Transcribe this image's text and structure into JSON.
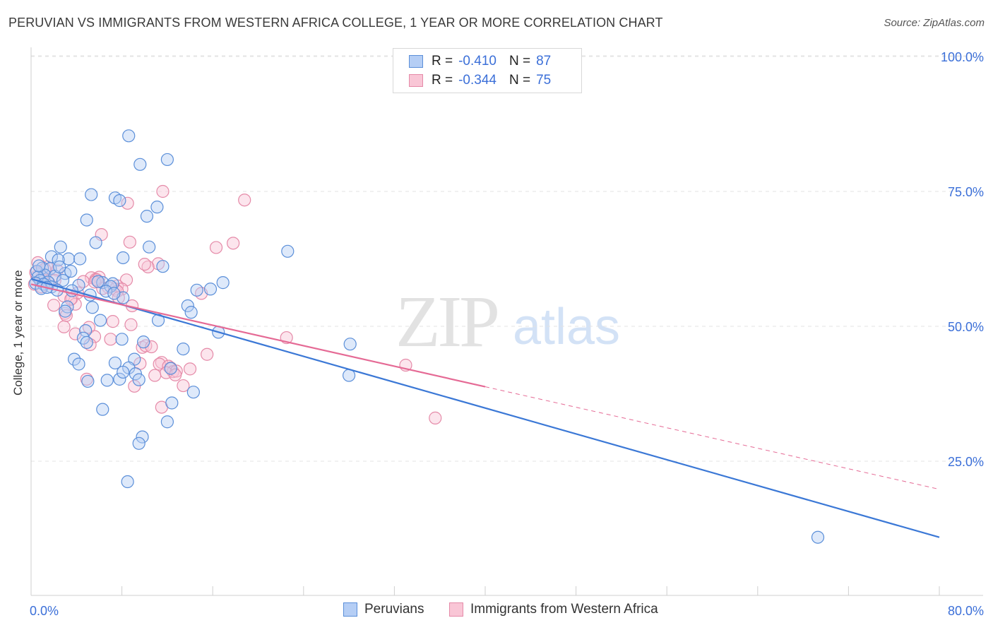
{
  "title": "PERUVIAN VS IMMIGRANTS FROM WESTERN AFRICA COLLEGE, 1 YEAR OR MORE CORRELATION CHART",
  "source": "Source: ZipAtlas.com",
  "watermark": {
    "zip": "ZIP",
    "atlas": "atlas"
  },
  "legend": {
    "r_label": "R =",
    "n_label": "N =",
    "series": [
      {
        "name": "Peruvians",
        "r": "-0.410",
        "n": "87",
        "fill": "#b5cef5",
        "stroke": "#5b8fd9"
      },
      {
        "name": "Immigrants from Western Africa",
        "r": "-0.344",
        "n": "75",
        "fill": "#f9c6d6",
        "stroke": "#e58aa8"
      }
    ]
  },
  "chart_data": {
    "type": "scatter",
    "title": "PERUVIAN VS IMMIGRANTS FROM WESTERN AFRICA COLLEGE, 1 YEAR OR MORE CORRELATION CHART",
    "xlabel": "",
    "ylabel": "College, 1 year or more",
    "xlim": [
      0,
      80
    ],
    "ylim": [
      0,
      105
    ],
    "x_tick_labels": [
      "0.0%",
      "80.0%"
    ],
    "y_ticks": [
      25,
      50,
      75,
      100
    ],
    "y_tick_labels": [
      "25.0%",
      "50.0%",
      "75.0%",
      "100.0%"
    ],
    "grid": true,
    "legend_position": "top-center",
    "colors": {
      "blue": "#3b78d6",
      "pink": "#e56a95",
      "axis_text": "#3b6fd8"
    },
    "trendlines": [
      {
        "series": "Peruvians",
        "x": [
          0,
          80
        ],
        "y": [
          58.8,
          10.9
        ],
        "style": "solid"
      },
      {
        "series": "Immigrants from Western Africa",
        "x": [
          0,
          40
        ],
        "y": [
          57.8,
          38.8
        ],
        "style": "solid"
      },
      {
        "series": "Immigrants from Western Africa",
        "x": [
          40,
          80
        ],
        "y": [
          38.8,
          19.8
        ],
        "style": "dashed"
      }
    ],
    "series": [
      {
        "name": "Peruvians",
        "points": [
          [
            8.6,
            85.3
          ],
          [
            9.6,
            80.0
          ],
          [
            12.0,
            80.9
          ],
          [
            5.3,
            74.4
          ],
          [
            7.4,
            73.8
          ],
          [
            7.8,
            73.3
          ],
          [
            11.1,
            72.1
          ],
          [
            4.9,
            69.7
          ],
          [
            10.2,
            70.4
          ],
          [
            5.7,
            65.5
          ],
          [
            2.6,
            64.7
          ],
          [
            10.4,
            64.7
          ],
          [
            22.6,
            63.9
          ],
          [
            1.8,
            62.9
          ],
          [
            3.3,
            62.5
          ],
          [
            4.3,
            62.5
          ],
          [
            8.1,
            62.7
          ],
          [
            2.4,
            62.3
          ],
          [
            11.6,
            61.1
          ],
          [
            1.0,
            60.8
          ],
          [
            0.5,
            60.2
          ],
          [
            1.7,
            60.7
          ],
          [
            1.2,
            59.5
          ],
          [
            3.0,
            59.8
          ],
          [
            0.6,
            59.1
          ],
          [
            2.1,
            59.3
          ],
          [
            0.8,
            58.5
          ],
          [
            1.5,
            58.2
          ],
          [
            2.8,
            58.5
          ],
          [
            0.4,
            58.0
          ],
          [
            1.1,
            57.8
          ],
          [
            4.2,
            57.6
          ],
          [
            6.3,
            58.1
          ],
          [
            7.2,
            57.9
          ],
          [
            16.9,
            58.1
          ],
          [
            7.0,
            57.4
          ],
          [
            1.8,
            57.3
          ],
          [
            0.9,
            57.0
          ],
          [
            2.3,
            56.7
          ],
          [
            3.6,
            56.6
          ],
          [
            6.6,
            56.5
          ],
          [
            15.8,
            56.9
          ],
          [
            14.6,
            56.7
          ],
          [
            5.2,
            55.8
          ],
          [
            8.1,
            55.3
          ],
          [
            3.2,
            53.6
          ],
          [
            5.4,
            53.5
          ],
          [
            13.8,
            53.8
          ],
          [
            14.1,
            52.6
          ],
          [
            6.1,
            51.1
          ],
          [
            11.2,
            51.1
          ],
          [
            4.8,
            49.2
          ],
          [
            16.5,
            48.9
          ],
          [
            4.6,
            47.8
          ],
          [
            8.0,
            47.6
          ],
          [
            9.9,
            47.1
          ],
          [
            4.9,
            47.0
          ],
          [
            28.1,
            46.7
          ],
          [
            13.4,
            45.8
          ],
          [
            3.8,
            43.9
          ],
          [
            4.2,
            43.0
          ],
          [
            9.1,
            43.9
          ],
          [
            7.4,
            43.2
          ],
          [
            8.6,
            42.3
          ],
          [
            12.3,
            42.2
          ],
          [
            9.2,
            41.2
          ],
          [
            7.8,
            40.2
          ],
          [
            8.1,
            41.5
          ],
          [
            5.0,
            39.8
          ],
          [
            6.7,
            40.0
          ],
          [
            9.5,
            40.1
          ],
          [
            14.3,
            37.8
          ],
          [
            12.4,
            35.8
          ],
          [
            6.3,
            34.6
          ],
          [
            12.0,
            32.3
          ],
          [
            9.8,
            29.5
          ],
          [
            9.5,
            28.3
          ],
          [
            8.5,
            21.2
          ],
          [
            28.0,
            40.9
          ],
          [
            69.3,
            10.9
          ],
          [
            3.5,
            60.2
          ],
          [
            0.7,
            61.2
          ],
          [
            2.5,
            61.0
          ],
          [
            1.4,
            57.2
          ],
          [
            5.9,
            58.3
          ],
          [
            3.0,
            52.8
          ],
          [
            7.3,
            56.1
          ]
        ]
      },
      {
        "name": "Immigrants from Western Africa",
        "points": [
          [
            11.6,
            75.0
          ],
          [
            18.8,
            73.4
          ],
          [
            8.5,
            72.8
          ],
          [
            6.2,
            67.0
          ],
          [
            8.7,
            65.6
          ],
          [
            17.8,
            65.4
          ],
          [
            16.3,
            64.6
          ],
          [
            11.2,
            61.6
          ],
          [
            10.3,
            61.0
          ],
          [
            0.6,
            61.8
          ],
          [
            1.4,
            61.0
          ],
          [
            2.3,
            60.4
          ],
          [
            0.5,
            59.3
          ],
          [
            1.0,
            59.2
          ],
          [
            5.3,
            59.0
          ],
          [
            6.0,
            59.1
          ],
          [
            5.7,
            58.7
          ],
          [
            5.8,
            58.6
          ],
          [
            8.4,
            58.6
          ],
          [
            4.6,
            58.3
          ],
          [
            1.6,
            58.0
          ],
          [
            0.3,
            57.8
          ],
          [
            0.9,
            57.3
          ],
          [
            7.6,
            57.5
          ],
          [
            6.8,
            57.2
          ],
          [
            7.4,
            56.9
          ],
          [
            8.0,
            56.9
          ],
          [
            7.6,
            56.5
          ],
          [
            15.0,
            56.1
          ],
          [
            7.7,
            55.3
          ],
          [
            2.9,
            55.6
          ],
          [
            3.6,
            55.2
          ],
          [
            2.0,
            53.9
          ],
          [
            3.9,
            54.1
          ],
          [
            8.9,
            53.8
          ],
          [
            3.0,
            52.4
          ],
          [
            3.1,
            52.0
          ],
          [
            2.9,
            49.9
          ],
          [
            5.1,
            49.8
          ],
          [
            8.8,
            50.3
          ],
          [
            7.2,
            50.9
          ],
          [
            3.9,
            48.6
          ],
          [
            5.6,
            48.1
          ],
          [
            22.5,
            47.9
          ],
          [
            7.0,
            47.6
          ],
          [
            5.2,
            46.6
          ],
          [
            9.8,
            46.1
          ],
          [
            10.1,
            46.4
          ],
          [
            15.5,
            44.8
          ],
          [
            10.6,
            46.2
          ],
          [
            9.6,
            43.1
          ],
          [
            11.5,
            43.3
          ],
          [
            11.3,
            43.0
          ],
          [
            12.3,
            42.3
          ],
          [
            12.1,
            42.6
          ],
          [
            12.5,
            41.6
          ],
          [
            12.8,
            41.7
          ],
          [
            11.9,
            41.4
          ],
          [
            10.9,
            40.9
          ],
          [
            12.7,
            41.0
          ],
          [
            33.0,
            42.8
          ],
          [
            4.9,
            40.2
          ],
          [
            13.4,
            39.0
          ],
          [
            9.1,
            38.9
          ],
          [
            11.5,
            35.0
          ],
          [
            35.6,
            33.0
          ],
          [
            1.2,
            60.6
          ],
          [
            2.1,
            58.5
          ],
          [
            4.1,
            56.2
          ],
          [
            6.3,
            57.0
          ],
          [
            14.0,
            42.1
          ],
          [
            3.5,
            55.0
          ],
          [
            5.6,
            58.2
          ],
          [
            10.0,
            61.5
          ],
          [
            0.4,
            60.0
          ]
        ]
      }
    ]
  }
}
